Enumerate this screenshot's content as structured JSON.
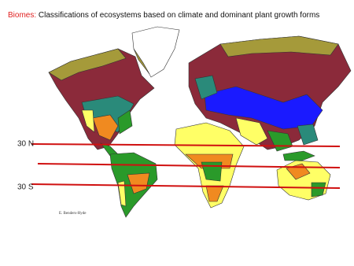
{
  "title": {
    "label": "Biomes:",
    "text": "Classifications of ecosystems based on climate and dominant plant growth forms"
  },
  "latitudes": [
    "30 N",
    "30 S"
  ],
  "credit": "E. Benders-Hyde"
}
